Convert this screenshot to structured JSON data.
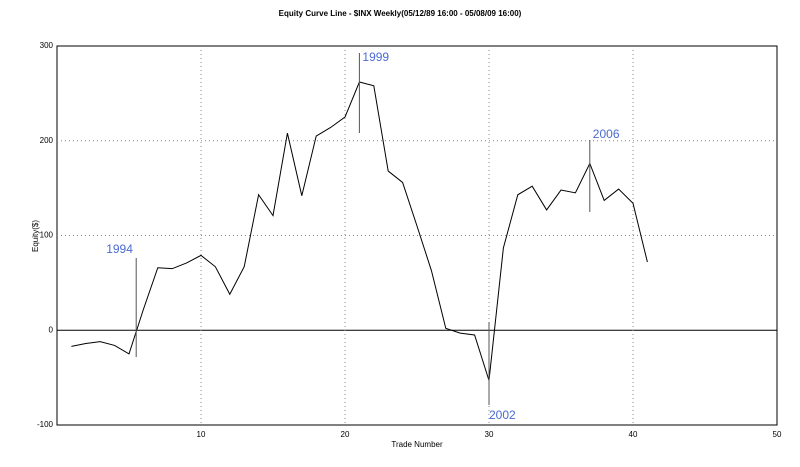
{
  "chart_data": {
    "type": "line",
    "title": "Equity Curve Line - $INX Weekly(05/12/89 16:00 - 05/08/09 16:00)",
    "x_label": "Trade Number",
    "y_label": "Equity($)",
    "x": [
      1,
      2,
      3,
      4,
      5,
      6,
      7,
      8,
      9,
      10,
      11,
      12,
      13,
      14,
      15,
      16,
      17,
      18,
      19,
      20,
      21,
      22,
      23,
      24,
      25,
      26,
      27,
      28,
      29,
      30,
      31,
      32,
      33,
      34,
      35,
      36,
      37,
      38,
      39,
      40,
      41
    ],
    "series": [
      {
        "name": "Equity",
        "color": "#000000",
        "values": [
          -17,
          -14,
          -12,
          -16,
          -25,
          22,
          66,
          65,
          71,
          79,
          67,
          38,
          67,
          143,
          121,
          208,
          142,
          205,
          214,
          225,
          262,
          258,
          168,
          156,
          110,
          63,
          2,
          -3,
          -5,
          -53,
          87,
          143,
          152,
          127,
          148,
          145,
          176,
          137,
          149,
          134,
          72
        ]
      }
    ],
    "annotations": [
      {
        "text": "1994",
        "x": 5.5
      },
      {
        "text": "1999",
        "x": 21
      },
      {
        "text": "2002",
        "x": 30
      },
      {
        "text": "2006",
        "x": 37
      }
    ],
    "xlim": [
      0,
      50
    ],
    "xticks": [
      10,
      20,
      30,
      40,
      50
    ],
    "ylim": [
      -100,
      300
    ],
    "yticks": [
      -100,
      0,
      100,
      200,
      300
    ],
    "grid": true
  }
}
